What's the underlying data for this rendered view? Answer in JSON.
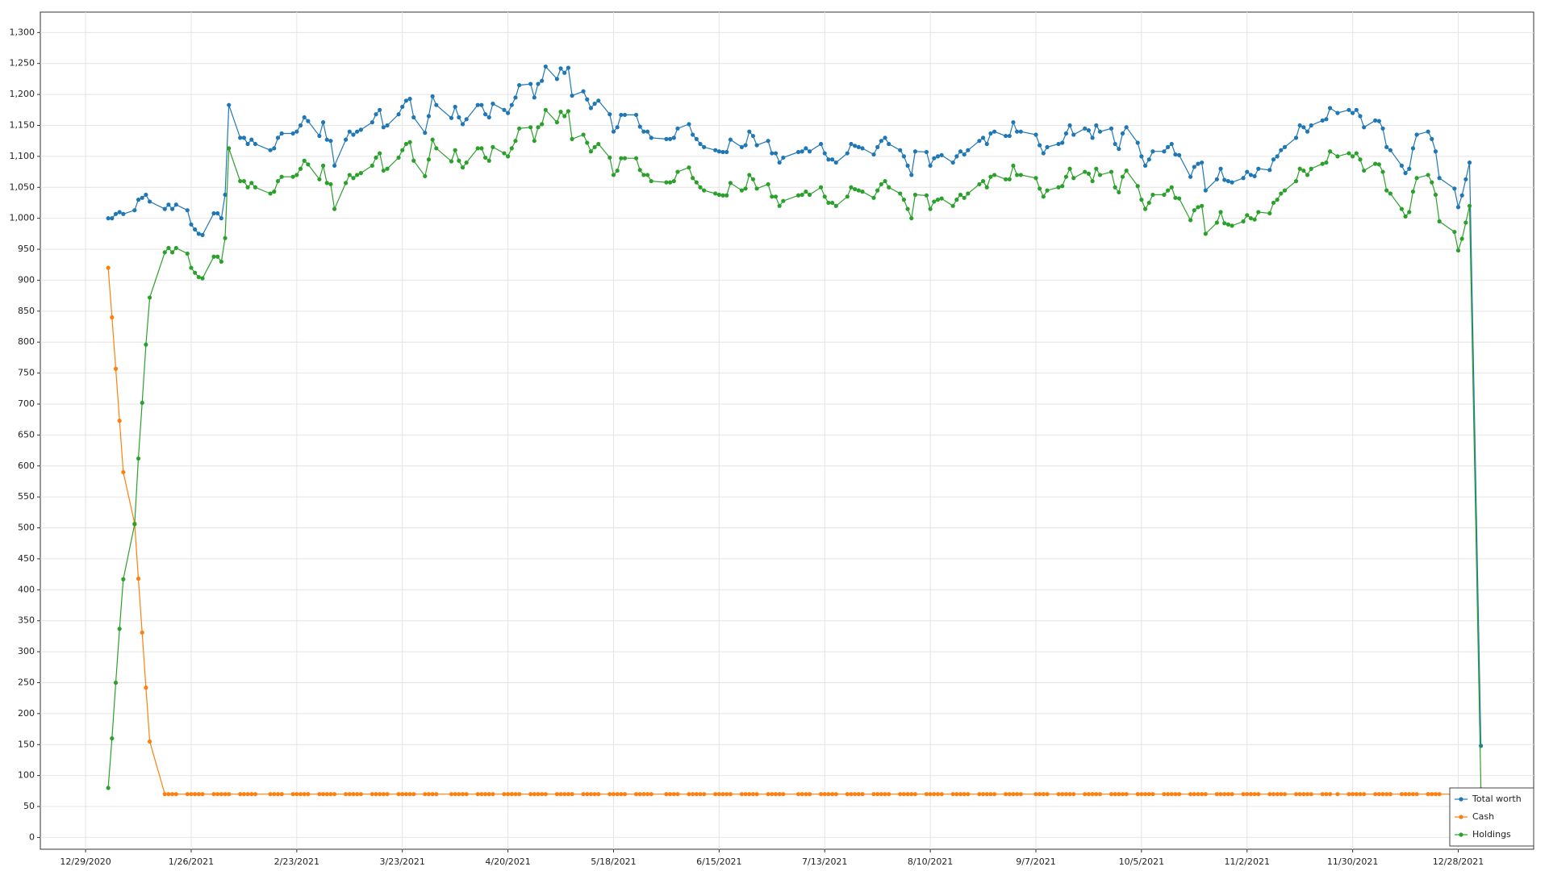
{
  "chart_data": {
    "type": "line",
    "x": [
      "1/4/2021",
      "1/5/2021",
      "1/6/2021",
      "1/7/2021",
      "1/8/2021",
      "1/11/2021",
      "1/12/2021",
      "1/13/2021",
      "1/14/2021",
      "1/15/2021",
      "1/19/2021",
      "1/20/2021",
      "1/21/2021",
      "1/22/2021",
      "1/25/2021",
      "1/26/2021",
      "1/27/2021",
      "1/28/2021",
      "1/29/2021",
      "2/1/2021",
      "2/2/2021",
      "2/3/2021",
      "2/4/2021",
      "2/5/2021",
      "2/8/2021",
      "2/9/2021",
      "2/10/2021",
      "2/11/2021",
      "2/12/2021",
      "2/16/2021",
      "2/17/2021",
      "2/18/2021",
      "2/19/2021",
      "2/22/2021",
      "2/23/2021",
      "2/24/2021",
      "2/25/2021",
      "2/26/2021",
      "3/1/2021",
      "3/2/2021",
      "3/3/2021",
      "3/4/2021",
      "3/5/2021",
      "3/8/2021",
      "3/9/2021",
      "3/10/2021",
      "3/11/2021",
      "3/12/2021",
      "3/15/2021",
      "3/16/2021",
      "3/17/2021",
      "3/18/2021",
      "3/19/2021",
      "3/22/2021",
      "3/23/2021",
      "3/24/2021",
      "3/25/2021",
      "3/26/2021",
      "3/29/2021",
      "3/30/2021",
      "3/31/2021",
      "4/1/2021",
      "4/5/2021",
      "4/6/2021",
      "4/7/2021",
      "4/8/2021",
      "4/9/2021",
      "4/12/2021",
      "4/13/2021",
      "4/14/2021",
      "4/15/2021",
      "4/16/2021",
      "4/19/2021",
      "4/20/2021",
      "4/21/2021",
      "4/22/2021",
      "4/23/2021",
      "4/26/2021",
      "4/27/2021",
      "4/28/2021",
      "4/29/2021",
      "4/30/2021",
      "5/3/2021",
      "5/4/2021",
      "5/5/2021",
      "5/6/2021",
      "5/7/2021",
      "5/10/2021",
      "5/11/2021",
      "5/12/2021",
      "5/13/2021",
      "5/14/2021",
      "5/17/2021",
      "5/18/2021",
      "5/19/2021",
      "5/20/2021",
      "5/21/2021",
      "5/24/2021",
      "5/25/2021",
      "5/26/2021",
      "5/27/2021",
      "5/28/2021",
      "6/1/2021",
      "6/2/2021",
      "6/3/2021",
      "6/4/2021",
      "6/7/2021",
      "6/8/2021",
      "6/9/2021",
      "6/10/2021",
      "6/11/2021",
      "6/14/2021",
      "6/15/2021",
      "6/16/2021",
      "6/17/2021",
      "6/18/2021",
      "6/21/2021",
      "6/22/2021",
      "6/23/2021",
      "6/24/2021",
      "6/25/2021",
      "6/28/2021",
      "6/29/2021",
      "6/30/2021",
      "7/1/2021",
      "7/2/2021",
      "7/6/2021",
      "7/7/2021",
      "7/8/2021",
      "7/9/2021",
      "7/12/2021",
      "7/13/2021",
      "7/14/2021",
      "7/15/2021",
      "7/16/2021",
      "7/19/2021",
      "7/20/2021",
      "7/21/2021",
      "7/22/2021",
      "7/23/2021",
      "7/26/2021",
      "7/27/2021",
      "7/28/2021",
      "7/29/2021",
      "7/30/2021",
      "8/2/2021",
      "8/3/2021",
      "8/4/2021",
      "8/5/2021",
      "8/6/2021",
      "8/9/2021",
      "8/10/2021",
      "8/11/2021",
      "8/12/2021",
      "8/13/2021",
      "8/16/2021",
      "8/17/2021",
      "8/18/2021",
      "8/19/2021",
      "8/20/2021",
      "8/23/2021",
      "8/24/2021",
      "8/25/2021",
      "8/26/2021",
      "8/27/2021",
      "8/30/2021",
      "8/31/2021",
      "9/1/2021",
      "9/2/2021",
      "9/3/2021",
      "9/7/2021",
      "9/8/2021",
      "9/9/2021",
      "9/10/2021",
      "9/13/2021",
      "9/14/2021",
      "9/15/2021",
      "9/16/2021",
      "9/17/2021",
      "9/20/2021",
      "9/21/2021",
      "9/22/2021",
      "9/23/2021",
      "9/24/2021",
      "9/27/2021",
      "9/28/2021",
      "9/29/2021",
      "9/30/2021",
      "10/1/2021",
      "10/4/2021",
      "10/5/2021",
      "10/6/2021",
      "10/7/2021",
      "10/8/2021",
      "10/11/2021",
      "10/12/2021",
      "10/13/2021",
      "10/14/2021",
      "10/15/2021",
      "10/18/2021",
      "10/19/2021",
      "10/20/2021",
      "10/21/2021",
      "10/22/2021",
      "10/25/2021",
      "10/26/2021",
      "10/27/2021",
      "10/28/2021",
      "10/29/2021",
      "11/1/2021",
      "11/2/2021",
      "11/3/2021",
      "11/4/2021",
      "11/5/2021",
      "11/8/2021",
      "11/9/2021",
      "11/10/2021",
      "11/11/2021",
      "11/12/2021",
      "11/15/2021",
      "11/16/2021",
      "11/17/2021",
      "11/18/2021",
      "11/19/2021",
      "11/22/2021",
      "11/23/2021",
      "11/24/2021",
      "11/26/2021",
      "11/29/2021",
      "11/30/2021",
      "12/1/2021",
      "12/2/2021",
      "12/3/2021",
      "12/6/2021",
      "12/7/2021",
      "12/8/2021",
      "12/9/2021",
      "12/10/2021",
      "12/13/2021",
      "12/14/2021",
      "12/15/2021",
      "12/16/2021",
      "12/17/2021",
      "12/20/2021",
      "12/21/2021",
      "12/22/2021",
      "12/23/2021",
      "12/27/2021",
      "12/28/2021",
      "12/29/2021",
      "12/30/2021",
      "12/31/2021",
      "1/3/2022"
    ],
    "series": [
      {
        "name": "Total worth",
        "color": "#1f77b4",
        "values": [
          1000,
          1000,
          1007,
          1010,
          1007,
          1013,
          1030,
          1033,
          1038,
          1027,
          1015,
          1022,
          1015,
          1022,
          1013,
          990,
          982,
          975,
          973,
          1008,
          1008,
          1000,
          1038,
          1183,
          1130,
          1130,
          1120,
          1127,
          1120,
          1110,
          1113,
          1130,
          1137,
          1137,
          1140,
          1150,
          1163,
          1157,
          1133,
          1155,
          1127,
          1125,
          1085,
          1127,
          1140,
          1135,
          1140,
          1143,
          1155,
          1168,
          1175,
          1147,
          1150,
          1168,
          1180,
          1190,
          1193,
          1163,
          1138,
          1165,
          1197,
          1183,
          1162,
          1180,
          1163,
          1152,
          1160,
          1183,
          1183,
          1168,
          1163,
          1185,
          1175,
          1170,
          1183,
          1195,
          1215,
          1217,
          1195,
          1217,
          1222,
          1245,
          1225,
          1242,
          1235,
          1243,
          1198,
          1205,
          1192,
          1178,
          1185,
          1190,
          1168,
          1140,
          1147,
          1167,
          1167,
          1167,
          1148,
          1140,
          1140,
          1130,
          1128,
          1128,
          1130,
          1145,
          1152,
          1135,
          1128,
          1120,
          1115,
          1110,
          1108,
          1107,
          1107,
          1127,
          1115,
          1118,
          1140,
          1133,
          1118,
          1125,
          1105,
          1105,
          1090,
          1098,
          1107,
          1108,
          1113,
          1108,
          1120,
          1105,
          1095,
          1095,
          1090,
          1105,
          1120,
          1117,
          1115,
          1113,
          1103,
          1115,
          1125,
          1130,
          1120,
          1110,
          1100,
          1085,
          1070,
          1108,
          1107,
          1085,
          1097,
          1100,
          1102,
          1090,
          1100,
          1108,
          1103,
          1110,
          1125,
          1130,
          1120,
          1137,
          1140,
          1133,
          1133,
          1155,
          1140,
          1140,
          1135,
          1118,
          1105,
          1115,
          1120,
          1122,
          1137,
          1150,
          1135,
          1145,
          1142,
          1130,
          1150,
          1140,
          1145,
          1120,
          1112,
          1137,
          1147,
          1122,
          1100,
          1085,
          1095,
          1108,
          1108,
          1115,
          1120,
          1103,
          1102,
          1067,
          1083,
          1088,
          1090,
          1045,
          1063,
          1080,
          1062,
          1060,
          1058,
          1065,
          1075,
          1070,
          1068,
          1080,
          1078,
          1095,
          1100,
          1110,
          1115,
          1130,
          1150,
          1147,
          1140,
          1150,
          1158,
          1160,
          1178,
          1170,
          1175,
          1170,
          1175,
          1165,
          1147,
          1158,
          1157,
          1145,
          1115,
          1110,
          1085,
          1073,
          1080,
          1113,
          1135,
          1140,
          1128,
          1108,
          1065,
          1048,
          1018,
          1037,
          1063,
          1090,
          148
        ]
      },
      {
        "name": "Cash",
        "color": "#ff7f0e",
        "values": [
          920,
          840,
          757,
          673,
          590,
          507,
          418,
          331,
          242,
          155,
          70,
          70,
          70,
          70,
          70,
          70,
          70,
          70,
          70,
          70,
          70,
          70,
          70,
          70,
          70,
          70,
          70,
          70,
          70,
          70,
          70,
          70,
          70,
          70,
          70,
          70,
          70,
          70,
          70,
          70,
          70,
          70,
          70,
          70,
          70,
          70,
          70,
          70,
          70,
          70,
          70,
          70,
          70,
          70,
          70,
          70,
          70,
          70,
          70,
          70,
          70,
          70,
          70,
          70,
          70,
          70,
          70,
          70,
          70,
          70,
          70,
          70,
          70,
          70,
          70,
          70,
          70,
          70,
          70,
          70,
          70,
          70,
          70,
          70,
          70,
          70,
          70,
          70,
          70,
          70,
          70,
          70,
          70,
          70,
          70,
          70,
          70,
          70,
          70,
          70,
          70,
          70,
          70,
          70,
          70,
          70,
          70,
          70,
          70,
          70,
          70,
          70,
          70,
          70,
          70,
          70,
          70,
          70,
          70,
          70,
          70,
          70,
          70,
          70,
          70,
          70,
          70,
          70,
          70,
          70,
          70,
          70,
          70,
          70,
          70,
          70,
          70,
          70,
          70,
          70,
          70,
          70,
          70,
          70,
          70,
          70,
          70,
          70,
          70,
          70,
          70,
          70,
          70,
          70,
          70,
          70,
          70,
          70,
          70,
          70,
          70,
          70,
          70,
          70,
          70,
          70,
          70,
          70,
          70,
          70,
          70,
          70,
          70,
          70,
          70,
          70,
          70,
          70,
          70,
          70,
          70,
          70,
          70,
          70,
          70,
          70,
          70,
          70,
          70,
          70,
          70,
          70,
          70,
          70,
          70,
          70,
          70,
          70,
          70,
          70,
          70,
          70,
          70,
          70,
          70,
          70,
          70,
          70,
          70,
          70,
          70,
          70,
          70,
          70,
          70,
          70,
          70,
          70,
          70,
          70,
          70,
          70,
          70,
          70,
          70,
          70,
          70,
          70,
          70,
          70,
          70,
          70,
          70,
          70,
          70,
          70,
          70,
          70,
          70,
          70,
          70,
          70,
          70,
          70,
          70,
          70,
          70,
          70,
          70,
          70,
          70,
          70,
          70
        ]
      },
      {
        "name": "Holdings",
        "color": "#2ca02c",
        "values": [
          80,
          160,
          250,
          337,
          417,
          506,
          612,
          702,
          796,
          872,
          945,
          952,
          945,
          952,
          943,
          920,
          912,
          905,
          903,
          938,
          938,
          930,
          968,
          1113,
          1060,
          1060,
          1050,
          1057,
          1050,
          1040,
          1043,
          1060,
          1067,
          1067,
          1070,
          1080,
          1093,
          1087,
          1063,
          1085,
          1057,
          1055,
          1015,
          1057,
          1070,
          1065,
          1070,
          1073,
          1085,
          1098,
          1105,
          1077,
          1080,
          1098,
          1110,
          1120,
          1123,
          1093,
          1068,
          1095,
          1127,
          1113,
          1092,
          1110,
          1093,
          1082,
          1090,
          1113,
          1113,
          1098,
          1093,
          1115,
          1105,
          1100,
          1113,
          1125,
          1145,
          1147,
          1125,
          1147,
          1152,
          1175,
          1155,
          1172,
          1165,
          1173,
          1128,
          1135,
          1122,
          1108,
          1115,
          1120,
          1098,
          1070,
          1077,
          1097,
          1097,
          1097,
          1078,
          1070,
          1070,
          1060,
          1058,
          1058,
          1060,
          1075,
          1082,
          1065,
          1058,
          1050,
          1045,
          1040,
          1038,
          1037,
          1037,
          1057,
          1045,
          1048,
          1070,
          1063,
          1048,
          1055,
          1035,
          1035,
          1020,
          1028,
          1037,
          1038,
          1043,
          1038,
          1050,
          1035,
          1025,
          1025,
          1020,
          1035,
          1050,
          1047,
          1045,
          1043,
          1033,
          1045,
          1055,
          1060,
          1050,
          1040,
          1030,
          1015,
          1000,
          1038,
          1037,
          1015,
          1027,
          1030,
          1032,
          1020,
          1030,
          1038,
          1033,
          1040,
          1055,
          1060,
          1050,
          1067,
          1070,
          1063,
          1063,
          1085,
          1070,
          1070,
          1065,
          1048,
          1035,
          1045,
          1050,
          1052,
          1067,
          1080,
          1065,
          1075,
          1072,
          1060,
          1080,
          1070,
          1075,
          1050,
          1042,
          1067,
          1077,
          1052,
          1030,
          1015,
          1025,
          1038,
          1038,
          1045,
          1050,
          1033,
          1032,
          997,
          1013,
          1018,
          1020,
          975,
          993,
          1010,
          992,
          990,
          988,
          995,
          1005,
          1000,
          998,
          1010,
          1008,
          1025,
          1030,
          1040,
          1045,
          1060,
          1080,
          1077,
          1070,
          1080,
          1088,
          1090,
          1108,
          1100,
          1105,
          1100,
          1105,
          1095,
          1077,
          1088,
          1087,
          1075,
          1045,
          1040,
          1015,
          1003,
          1010,
          1043,
          1065,
          1070,
          1058,
          1038,
          995,
          978,
          948,
          967,
          993,
          1020,
          78
        ]
      }
    ],
    "xlim": [
      "12/17/2020",
      "1/17/2022"
    ],
    "xticks": [
      "12/29/2020",
      "1/26/2021",
      "2/23/2021",
      "3/23/2021",
      "4/20/2021",
      "5/18/2021",
      "6/15/2021",
      "7/13/2021",
      "8/10/2021",
      "9/7/2021",
      "10/5/2021",
      "11/2/2021",
      "11/30/2021",
      "12/28/2021"
    ],
    "ylim": [
      -19,
      1333
    ],
    "yticks": [
      0,
      50,
      100,
      150,
      200,
      250,
      300,
      350,
      400,
      450,
      500,
      550,
      600,
      650,
      700,
      750,
      800,
      850,
      900,
      950,
      {
        "value": 1000,
        "label": "1,000"
      },
      {
        "value": 1050,
        "label": "1,050"
      },
      {
        "value": 1100,
        "label": "1,100"
      },
      {
        "value": 1150,
        "label": "1,150"
      },
      {
        "value": 1200,
        "label": "1,200"
      },
      {
        "value": 1250,
        "label": "1,250"
      },
      {
        "value": 1300,
        "label": "1,300"
      }
    ],
    "grid": true,
    "legend": "bottom right"
  }
}
